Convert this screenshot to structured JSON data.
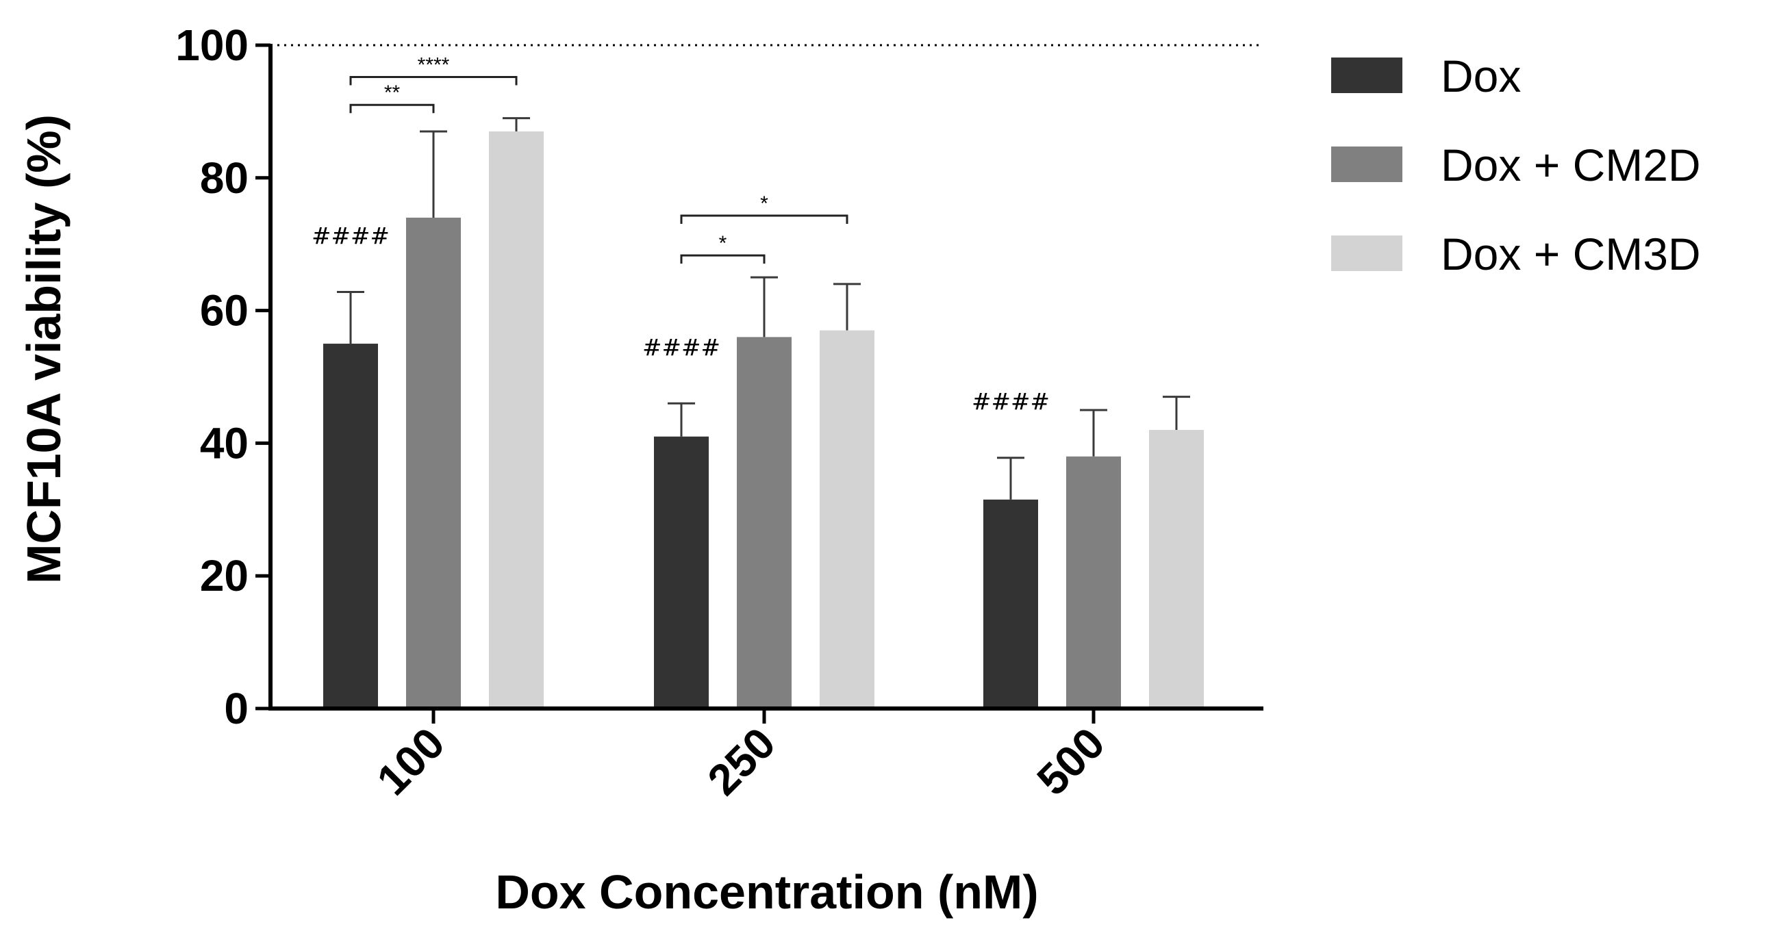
{
  "chart_data": {
    "type": "bar",
    "title": "",
    "xlabel": "Dox Concentration (nM)",
    "ylabel": "MCF10A viability (%)",
    "ylim": [
      0,
      100
    ],
    "yticks": [
      "0",
      "20",
      "40",
      "60",
      "80",
      "100"
    ],
    "reference_line": 100,
    "categories": [
      "100",
      "250",
      "500"
    ],
    "series": [
      {
        "name": "Dox",
        "color": "#333333",
        "values": [
          55,
          41,
          31.5
        ],
        "errors": [
          7.8,
          5,
          6.3
        ]
      },
      {
        "name": "Dox + CM2D",
        "color": "#808080",
        "values": [
          74,
          56,
          38
        ],
        "errors": [
          13,
          9,
          7
        ]
      },
      {
        "name": "Dox + CM3D",
        "color": "#d3d3d3",
        "values": [
          87,
          57,
          42
        ],
        "errors": [
          2,
          7,
          5
        ]
      }
    ],
    "legend_position": "top-right",
    "hash_annotations": [
      "####",
      "####",
      "####"
    ],
    "significance": [
      {
        "category": "100",
        "from": "Dox",
        "to": "Dox + CM2D",
        "label": "**"
      },
      {
        "category": "100",
        "from": "Dox",
        "to": "Dox + CM3D",
        "label": "****"
      },
      {
        "category": "250",
        "from": "Dox",
        "to": "Dox + CM2D",
        "label": "*"
      },
      {
        "category": "250",
        "from": "Dox",
        "to": "Dox + CM3D",
        "label": "*"
      }
    ]
  }
}
